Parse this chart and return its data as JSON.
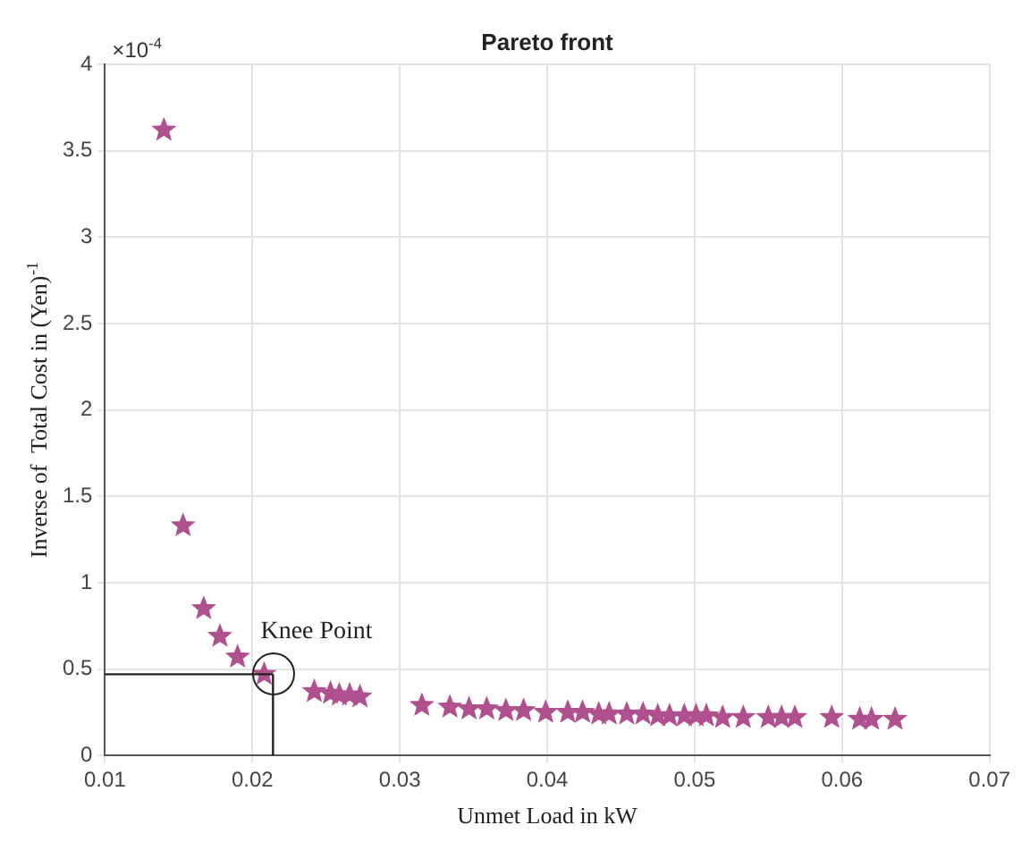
{
  "chart_data": {
    "type": "scatter",
    "title": "Pareto front",
    "xlabel": "Unmet Load in kW",
    "ylabel": "Inverse of  Total Cost in (Yen)$^{-1}$",
    "annotations": [
      "×10$^{-4}$",
      {
        "text": "Knee Point",
        "x": 0.0208,
        "y": 0.47
      }
    ],
    "x": [
      0.014,
      0.0153,
      0.0167,
      0.0178,
      0.019,
      0.0208,
      0.0242,
      0.0253,
      0.0259,
      0.0266,
      0.0273,
      0.0315,
      0.0334,
      0.0347,
      0.0359,
      0.0372,
      0.0384,
      0.0399,
      0.0414,
      0.0424,
      0.0435,
      0.0442,
      0.0454,
      0.0465,
      0.0475,
      0.0483,
      0.0493,
      0.0501,
      0.0508,
      0.0519,
      0.0533,
      0.055,
      0.0559,
      0.0568,
      0.0593,
      0.0612,
      0.062,
      0.0636
    ],
    "series": [
      {
        "color": "#b0508f",
        "values": [
          3.62,
          1.33,
          0.85,
          0.69,
          0.57,
          0.47,
          0.37,
          0.36,
          0.35,
          0.35,
          0.34,
          0.29,
          0.28,
          0.27,
          0.27,
          0.26,
          0.26,
          0.25,
          0.25,
          0.25,
          0.24,
          0.24,
          0.24,
          0.24,
          0.23,
          0.23,
          0.23,
          0.23,
          0.23,
          0.22,
          0.22,
          0.22,
          0.22,
          0.22,
          0.22,
          0.21,
          0.21,
          0.21
        ]
      }
    ],
    "ref_lines": [
      {
        "axis": "y",
        "value": 0.47,
        "label": null
      },
      {
        "axis": "x",
        "value": 0.0214,
        "label": null
      }
    ],
    "xlim": [
      0.01,
      0.07
    ],
    "xticks": [
      0.01,
      0.02,
      0.03,
      0.04,
      0.05,
      0.06,
      0.07
    ],
    "ylim": [
      0,
      4
    ],
    "yticks": [
      0,
      0.5,
      1,
      1.5,
      2,
      2.5,
      3,
      3.5,
      4
    ],
    "grid": true,
    "legend": false,
    "marker": "star"
  }
}
